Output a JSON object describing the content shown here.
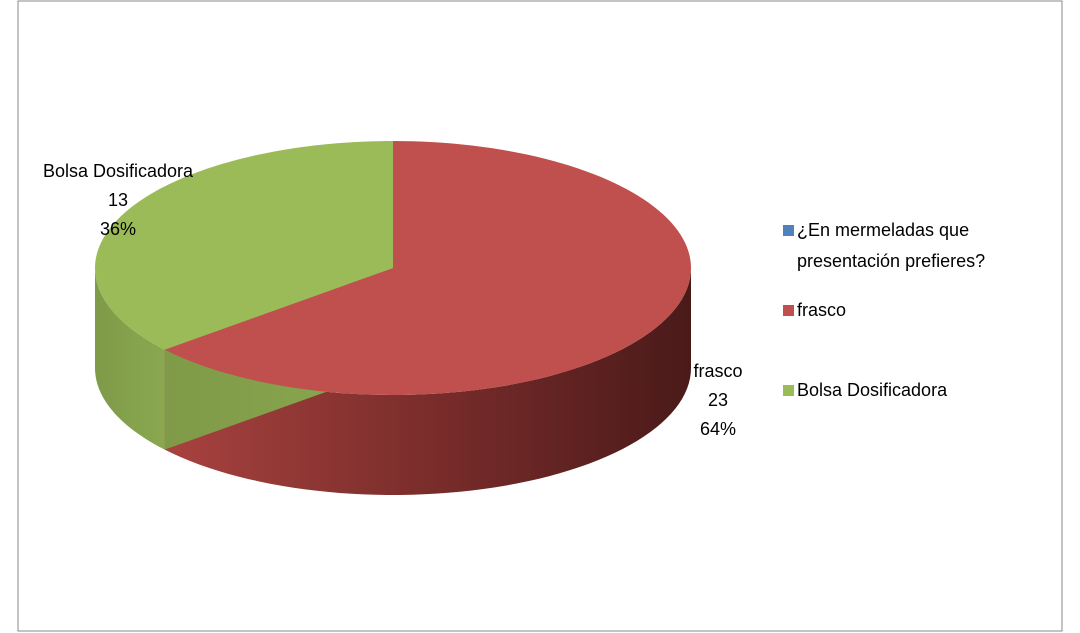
{
  "chart_data": {
    "type": "pie3d",
    "categories": [
      "¿En mermeladas que presentación prefieres?",
      "frasco",
      "Bolsa Dosificadora"
    ],
    "values": [
      null,
      23,
      13
    ],
    "percent_labels": [
      null,
      "64%",
      "36%"
    ],
    "colors": [
      "#4f81bd",
      "#c0504d",
      "#9bbb59"
    ],
    "legend": "right"
  }
}
